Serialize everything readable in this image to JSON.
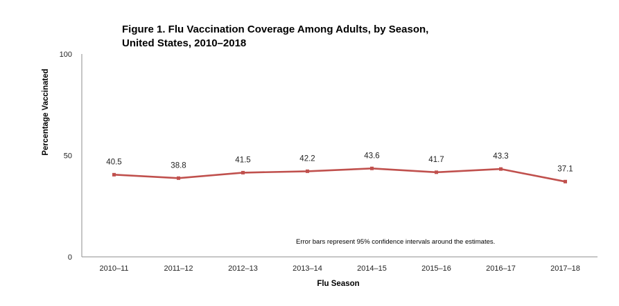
{
  "chart_data": {
    "type": "line",
    "title": "Figure 1. Flu Vaccination Coverage Among Adults, by Season,",
    "subtitle": "United States, 2010–2018",
    "xlabel": "Flu Season",
    "ylabel": "Percentage Vaccinated",
    "ylim": [
      0,
      100
    ],
    "yticks": [
      "0",
      "50",
      "100"
    ],
    "grid": false,
    "categories": [
      "2010–11",
      "2011–12",
      "2012–13",
      "2013–14",
      "2014–15",
      "2015–16",
      "2016–17",
      "2017–18"
    ],
    "series": [
      {
        "values": [
          40.5,
          38.8,
          41.5,
          42.2,
          43.6,
          41.7,
          43.3,
          37.1
        ],
        "labels": [
          "40.5",
          "38.8",
          "41.5",
          "42.2",
          "43.6",
          "41.7",
          "43.3",
          "37.1"
        ],
        "color": "#c0504d"
      }
    ],
    "annotation": "Error bars represent 95% confidence intervals around the estimates."
  }
}
